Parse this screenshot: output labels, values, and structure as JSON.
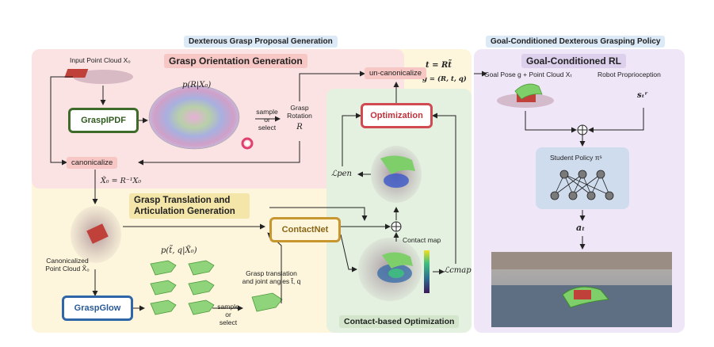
{
  "headers": {
    "proposal": "Dexterous Grasp Proposal Generation",
    "policy": "Goal-Conditioned Dexterous Grasping Policy"
  },
  "sections": {
    "orientation": "Grasp Orientation Generation",
    "translation": "Grasp Translation and Articulation Generation",
    "contact_opt": "Contact-based Optimization",
    "rl": "Goal-Conditioned RL"
  },
  "labels": {
    "input_cloud": "Input Point Cloud X₀",
    "distribution": "p(R|X₀)",
    "sample_or_select_1": [
      "sample",
      "or",
      "select"
    ],
    "grasp_rotation": [
      "Grasp",
      "Rotation"
    ],
    "rotation_symbol": "R",
    "canon_eq": "X̃₀ = R⁻¹X₀",
    "canon_cloud": [
      "Canonicalized",
      "Point Cloud X̃₀"
    ],
    "dist2": "p(t̃, q|X̃₀)",
    "grasp_trans": [
      "Grasp translation",
      "and joint angles t̃, q"
    ],
    "sample_or_select_2": [
      "sample",
      "or",
      "select"
    ],
    "l_pen": "ℒpen",
    "contact_map": "Contact map",
    "l_cmap": "ℒcmap",
    "t_eq": "t = Rt̃",
    "g_eq": "g = (R, t, q)",
    "goal_pose": "Goal Pose g + Point Cloud Xₜ",
    "robot_proprio": "Robot Proprioception",
    "s_t": "sₜʳ",
    "student_policy": "Student Policy πˢ",
    "a_t": "aₜ"
  },
  "boxes": {
    "grasp_ipdf": "GraspIPDF",
    "canonicalize": "canonicalize",
    "un_canonicalize": "un-canonicalize",
    "optimization": "Optimization",
    "contactnet": "ContactNet",
    "graspglow": "GraspGlow"
  },
  "colors": {
    "orientation_bg": "#fbe3e3",
    "translation_bg": "#fdf6dc",
    "contact_bg": "#e4f0e0",
    "policy_bg": "#efe6f7",
    "header_bg": "#dce9f7",
    "ipdf_border": "#3e6b2a",
    "glow_border": "#2f66a8",
    "contact_border": "#c7962e",
    "opt_border": "#d14a52",
    "pink_pill": "#f6c7c4"
  }
}
